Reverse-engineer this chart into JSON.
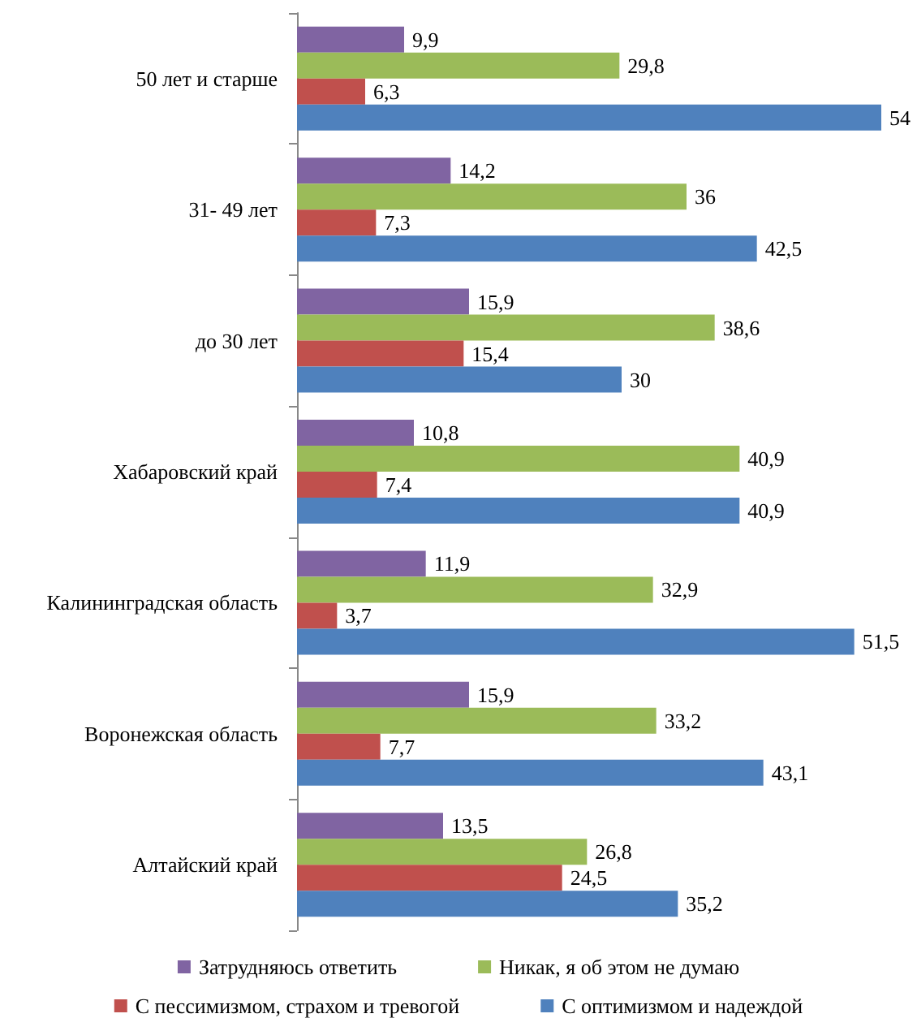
{
  "chart_data": {
    "type": "bar",
    "orientation": "horizontal",
    "categories": [
      "50 лет и старше",
      "31- 49 лет",
      "до 30 лет",
      "Хабаровский край",
      "Калининградская область",
      "Воронежская область",
      "Алтайский край"
    ],
    "series": [
      {
        "name": "Затрудняюсь ответить",
        "color": "#8064a2",
        "values": [
          9.9,
          14.2,
          15.9,
          10.8,
          11.9,
          15.9,
          13.5
        ],
        "value_labels": [
          "9,9",
          "14,2",
          "15,9",
          "10,8",
          "11,9",
          "15,9",
          "13,5"
        ]
      },
      {
        "name": "Никак, я об этом не думаю",
        "color": "#9bbb59",
        "values": [
          29.8,
          36,
          38.6,
          40.9,
          32.9,
          33.2,
          26.8
        ],
        "value_labels": [
          "29,8",
          "36",
          "38,6",
          "40,9",
          "32,9",
          "33,2",
          "26,8"
        ]
      },
      {
        "name": "С пессимизмом, страхом и тревогой",
        "color": "#c0504d",
        "values": [
          6.3,
          7.3,
          15.4,
          7.4,
          3.7,
          7.7,
          24.5
        ],
        "value_labels": [
          "6,3",
          "7,3",
          "15,4",
          "7,4",
          "3,7",
          "7,7",
          "24,5"
        ]
      },
      {
        "name": "С оптимизмом и надеждой",
        "color": "#4f81bd",
        "values": [
          54,
          42.5,
          30,
          40.9,
          51.5,
          43.1,
          35.2
        ],
        "value_labels": [
          "54",
          "42,5",
          "30",
          "40,9",
          "51,5",
          "43,1",
          "35,2"
        ]
      }
    ],
    "legend": "bottom"
  }
}
